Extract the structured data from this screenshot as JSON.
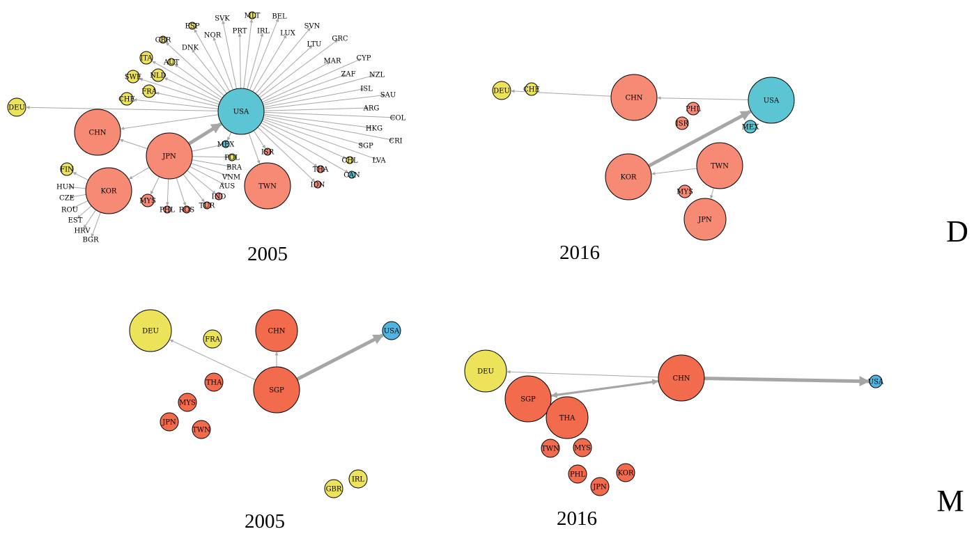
{
  "colors": {
    "yellow": "#ece35a",
    "salmon": "#f68a75",
    "cyan": "#5cc5d3",
    "orange": "#f26b4c",
    "blue": "#4fb5e0",
    "edge": "#a6a6a6"
  },
  "row_labels": [
    "D",
    "M"
  ],
  "panels": [
    {
      "year": "2005",
      "hub": "USA",
      "nodes": [
        {
          "id": "USA",
          "color": "cyan",
          "size": "xl"
        },
        {
          "id": "DEU",
          "color": "yellow",
          "size": "m"
        },
        {
          "id": "CHN",
          "color": "salmon",
          "size": "xl"
        },
        {
          "id": "JPN",
          "color": "salmon",
          "size": "xl"
        },
        {
          "id": "KOR",
          "color": "salmon",
          "size": "xl"
        },
        {
          "id": "TWN",
          "color": "salmon",
          "size": "xl"
        },
        {
          "id": "MYS",
          "color": "salmon",
          "size": "s"
        },
        {
          "id": "PHL",
          "color": "salmon",
          "size": "xs"
        },
        {
          "id": "ISR",
          "color": "salmon",
          "size": "xs"
        },
        {
          "id": "THA",
          "color": "salmon",
          "size": "xs"
        },
        {
          "id": "IDN",
          "color": "salmon",
          "size": "xs"
        },
        {
          "id": "MEX",
          "color": "cyan",
          "size": "xs"
        },
        {
          "id": "CAN",
          "color": "cyan",
          "size": "xs"
        },
        {
          "id": "FIN",
          "color": "yellow",
          "size": "s"
        },
        {
          "id": "GBR",
          "color": "yellow",
          "size": "xs"
        },
        {
          "id": "ITA",
          "color": "yellow",
          "size": "s"
        },
        {
          "id": "SWE",
          "color": "yellow",
          "size": "s"
        },
        {
          "id": "CHE",
          "color": "yellow",
          "size": "s"
        },
        {
          "id": "AUT",
          "color": "yellow",
          "size": "xs"
        },
        {
          "id": "NLD",
          "color": "yellow",
          "size": "s"
        },
        {
          "id": "FRA",
          "color": "yellow",
          "size": "s"
        },
        {
          "id": "ESP",
          "color": "yellow",
          "size": "xs"
        },
        {
          "id": "MLT",
          "color": "yellow",
          "size": "xs"
        },
        {
          "id": "ROS",
          "color": "salmon",
          "size": "xs"
        },
        {
          "id": "POL",
          "color": "yellow",
          "size": "xs"
        },
        {
          "id": "CHL",
          "color": "yellow",
          "size": "xs"
        },
        {
          "id": "IND",
          "color": "salmon",
          "size": "xs"
        },
        {
          "id": "TUR",
          "color": "salmon",
          "size": "xs"
        },
        {
          "id": "DNK",
          "color": "none"
        },
        {
          "id": "NOR",
          "color": "none"
        },
        {
          "id": "PRT",
          "color": "none"
        },
        {
          "id": "SVK",
          "color": "none"
        },
        {
          "id": "IRL",
          "color": "none"
        },
        {
          "id": "BEL",
          "color": "none"
        },
        {
          "id": "LUX",
          "color": "none"
        },
        {
          "id": "SVN",
          "color": "none"
        },
        {
          "id": "LTU",
          "color": "none"
        },
        {
          "id": "GRC",
          "color": "none"
        },
        {
          "id": "MAR",
          "color": "none"
        },
        {
          "id": "CYP",
          "color": "none"
        },
        {
          "id": "ZAF",
          "color": "none"
        },
        {
          "id": "NZL",
          "color": "none"
        },
        {
          "id": "ISL",
          "color": "none"
        },
        {
          "id": "SAU",
          "color": "none"
        },
        {
          "id": "ARG",
          "color": "none"
        },
        {
          "id": "COL",
          "color": "none"
        },
        {
          "id": "HKG",
          "color": "none"
        },
        {
          "id": "CRI",
          "color": "none"
        },
        {
          "id": "SGP",
          "color": "none"
        },
        {
          "id": "LVA",
          "color": "none"
        },
        {
          "id": "BRA",
          "color": "none"
        },
        {
          "id": "VNM",
          "color": "none"
        },
        {
          "id": "AUS",
          "color": "none"
        },
        {
          "id": "HUN",
          "color": "none"
        },
        {
          "id": "CZE",
          "color": "none"
        },
        {
          "id": "ROU",
          "color": "none"
        },
        {
          "id": "EST",
          "color": "none"
        },
        {
          "id": "HRV",
          "color": "none"
        },
        {
          "id": "BGR",
          "color": "none"
        }
      ],
      "edges": [
        {
          "from": "USA",
          "to": "DEU"
        },
        {
          "from": "USA",
          "to": "CHN"
        },
        {
          "from": "JPN",
          "to": "USA",
          "weight": "heavy"
        },
        {
          "from": "JPN",
          "to": "CHN"
        },
        {
          "from": "JPN",
          "to": "KOR"
        },
        {
          "from": "KOR",
          "to": "FIN"
        }
      ]
    },
    {
      "year": "2016",
      "hub": "USA",
      "nodes": [
        {
          "id": "USA",
          "color": "cyan",
          "size": "xl"
        },
        {
          "id": "CHN",
          "color": "salmon",
          "size": "xl"
        },
        {
          "id": "KOR",
          "color": "salmon",
          "size": "xl"
        },
        {
          "id": "TWN",
          "color": "salmon",
          "size": "xl"
        },
        {
          "id": "JPN",
          "color": "salmon",
          "size": "l"
        },
        {
          "id": "DEU",
          "color": "yellow",
          "size": "m"
        },
        {
          "id": "CHE",
          "color": "yellow",
          "size": "s"
        },
        {
          "id": "MYS",
          "color": "salmon",
          "size": "s"
        },
        {
          "id": "PHL",
          "color": "salmon",
          "size": "s"
        },
        {
          "id": "ISR",
          "color": "salmon",
          "size": "s"
        },
        {
          "id": "MEX",
          "color": "cyan",
          "size": "s"
        }
      ],
      "edges": [
        {
          "from": "KOR",
          "to": "USA",
          "weight": "heavy"
        },
        {
          "from": "USA",
          "to": "CHN"
        },
        {
          "from": "CHN",
          "to": "DEU"
        },
        {
          "from": "TWN",
          "to": "KOR"
        },
        {
          "from": "TWN",
          "to": "JPN"
        }
      ]
    },
    {
      "year": "2005",
      "hub": "SGP",
      "nodes": [
        {
          "id": "SGP",
          "color": "orange",
          "size": "xl"
        },
        {
          "id": "CHN",
          "color": "orange",
          "size": "l"
        },
        {
          "id": "DEU",
          "color": "yellow",
          "size": "l"
        },
        {
          "id": "USA",
          "color": "blue",
          "size": "m"
        },
        {
          "id": "FRA",
          "color": "yellow",
          "size": "m"
        },
        {
          "id": "GBR",
          "color": "yellow",
          "size": "m"
        },
        {
          "id": "IRL",
          "color": "yellow",
          "size": "m"
        },
        {
          "id": "THA",
          "color": "orange",
          "size": "m"
        },
        {
          "id": "MYS",
          "color": "orange",
          "size": "m"
        },
        {
          "id": "JPN",
          "color": "orange",
          "size": "m"
        },
        {
          "id": "TWN",
          "color": "orange",
          "size": "m"
        }
      ],
      "edges": [
        {
          "from": "SGP",
          "to": "USA",
          "weight": "heavy"
        },
        {
          "from": "SGP",
          "to": "CHN"
        },
        {
          "from": "SGP",
          "to": "DEU"
        }
      ]
    },
    {
      "year": "2016",
      "hub": "CHN",
      "nodes": [
        {
          "id": "CHN",
          "color": "orange",
          "size": "xl"
        },
        {
          "id": "USA",
          "color": "blue",
          "size": "s"
        },
        {
          "id": "DEU",
          "color": "yellow",
          "size": "l"
        },
        {
          "id": "SGP",
          "color": "orange",
          "size": "xl"
        },
        {
          "id": "THA",
          "color": "orange",
          "size": "l"
        },
        {
          "id": "TWN",
          "color": "orange",
          "size": "m"
        },
        {
          "id": "MYS",
          "color": "orange",
          "size": "m"
        },
        {
          "id": "PHL",
          "color": "orange",
          "size": "m"
        },
        {
          "id": "JPN",
          "color": "orange",
          "size": "m"
        },
        {
          "id": "KOR",
          "color": "orange",
          "size": "m"
        }
      ],
      "edges": [
        {
          "from": "CHN",
          "to": "USA",
          "weight": "heavy"
        },
        {
          "from": "CHN",
          "to": "SGP",
          "weight": "medium"
        },
        {
          "from": "SGP",
          "to": "CHN",
          "weight": "medium"
        },
        {
          "from": "CHN",
          "to": "DEU"
        }
      ]
    }
  ]
}
